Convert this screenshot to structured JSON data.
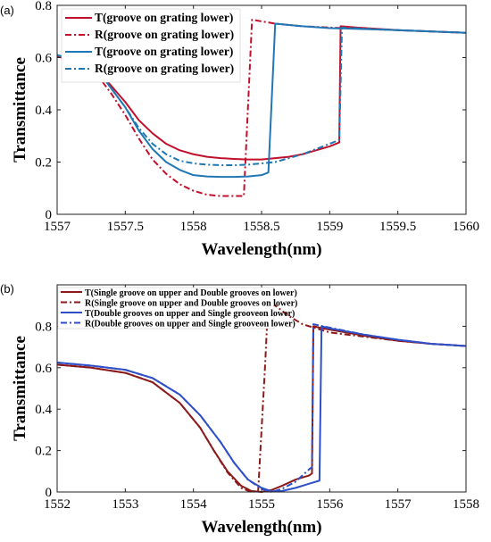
{
  "chart_data": [
    {
      "id": "a",
      "panel_label": "(a)",
      "type": "line",
      "xlabel": "Wavelength(nm)",
      "ylabel": "Transmittance",
      "xlim": [
        1557,
        1560
      ],
      "ylim": [
        0,
        0.8
      ],
      "xticks": [
        "1557",
        "1557.5",
        "1558",
        "1558.5",
        "1559",
        "1559.5",
        "1560"
      ],
      "yticks": [
        "0",
        "0.2",
        "0.4",
        "0.6",
        "0.8"
      ],
      "legend_position": "top-left",
      "series": [
        {
          "name": "T(groove on grating lower)",
          "color": "#c0102c",
          "dash": "solid",
          "points": [
            [
              1557,
              0.605
            ],
            [
              1557.1,
              0.595
            ],
            [
              1557.2,
              0.58
            ],
            [
              1557.3,
              0.55
            ],
            [
              1557.4,
              0.49
            ],
            [
              1557.5,
              0.43
            ],
            [
              1557.6,
              0.36
            ],
            [
              1557.7,
              0.31
            ],
            [
              1557.8,
              0.27
            ],
            [
              1557.9,
              0.245
            ],
            [
              1558,
              0.23
            ],
            [
              1558.1,
              0.22
            ],
            [
              1558.2,
              0.215
            ],
            [
              1558.3,
              0.212
            ],
            [
              1558.4,
              0.21
            ],
            [
              1558.5,
              0.21
            ],
            [
              1558.6,
              0.215
            ],
            [
              1558.7,
              0.22
            ],
            [
              1558.8,
              0.23
            ],
            [
              1558.9,
              0.245
            ],
            [
              1559,
              0.26
            ],
            [
              1559.07,
              0.275
            ],
            [
              1559.08,
              0.72
            ],
            [
              1559.2,
              0.715
            ],
            [
              1559.5,
              0.705
            ],
            [
              1560,
              0.695
            ]
          ]
        },
        {
          "name": "R(groove on grating lower)",
          "color": "#c0102c",
          "dash": "dashdot",
          "points": [
            [
              1557,
              0.605
            ],
            [
              1557.1,
              0.59
            ],
            [
              1557.2,
              0.57
            ],
            [
              1557.3,
              0.53
            ],
            [
              1557.4,
              0.46
            ],
            [
              1557.5,
              0.38
            ],
            [
              1557.6,
              0.29
            ],
            [
              1557.7,
              0.21
            ],
            [
              1557.8,
              0.155
            ],
            [
              1557.9,
              0.115
            ],
            [
              1558,
              0.09
            ],
            [
              1558.1,
              0.075
            ],
            [
              1558.2,
              0.07
            ],
            [
              1558.3,
              0.07
            ],
            [
              1558.37,
              0.07
            ],
            [
              1558.43,
              0.745
            ],
            [
              1558.6,
              0.73
            ],
            [
              1558.8,
              0.72
            ],
            [
              1559,
              0.715
            ],
            [
              1559.5,
              0.705
            ],
            [
              1560,
              0.695
            ]
          ]
        },
        {
          "name": "T(groove on grating lower)",
          "color": "#1f77b4",
          "dash": "solid",
          "points": [
            [
              1557,
              0.61
            ],
            [
              1557.1,
              0.595
            ],
            [
              1557.2,
              0.58
            ],
            [
              1557.3,
              0.55
            ],
            [
              1557.4,
              0.48
            ],
            [
              1557.5,
              0.41
            ],
            [
              1557.6,
              0.32
            ],
            [
              1557.7,
              0.25
            ],
            [
              1557.8,
              0.2
            ],
            [
              1557.9,
              0.17
            ],
            [
              1558,
              0.15
            ],
            [
              1558.1,
              0.145
            ],
            [
              1558.2,
              0.143
            ],
            [
              1558.3,
              0.143
            ],
            [
              1558.4,
              0.145
            ],
            [
              1558.5,
              0.15
            ],
            [
              1558.55,
              0.16
            ],
            [
              1558.6,
              0.73
            ],
            [
              1558.8,
              0.72
            ],
            [
              1559,
              0.713
            ],
            [
              1559.5,
              0.705
            ],
            [
              1560,
              0.695
            ]
          ]
        },
        {
          "name": "R(groove on grating lower)",
          "color": "#1f77b4",
          "dash": "dashdot",
          "points": [
            [
              1557,
              0.61
            ],
            [
              1557.1,
              0.595
            ],
            [
              1557.2,
              0.58
            ],
            [
              1557.3,
              0.55
            ],
            [
              1557.4,
              0.48
            ],
            [
              1557.5,
              0.41
            ],
            [
              1557.6,
              0.33
            ],
            [
              1557.7,
              0.27
            ],
            [
              1557.8,
              0.23
            ],
            [
              1557.9,
              0.205
            ],
            [
              1558,
              0.195
            ],
            [
              1558.1,
              0.19
            ],
            [
              1558.2,
              0.188
            ],
            [
              1558.3,
              0.188
            ],
            [
              1558.4,
              0.19
            ],
            [
              1558.5,
              0.195
            ],
            [
              1558.6,
              0.2
            ],
            [
              1558.7,
              0.215
            ],
            [
              1558.8,
              0.23
            ],
            [
              1558.9,
              0.25
            ],
            [
              1559,
              0.27
            ],
            [
              1559.07,
              0.285
            ],
            [
              1559.09,
              0.715
            ],
            [
              1559.3,
              0.71
            ],
            [
              1559.5,
              0.705
            ],
            [
              1560,
              0.695
            ]
          ]
        }
      ]
    },
    {
      "id": "b",
      "panel_label": "(b)",
      "type": "line",
      "xlabel": "Wavelength(nm)",
      "ylabel": "Transmittance",
      "xlim": [
        1552,
        1558
      ],
      "ylim": [
        0,
        1.0
      ],
      "xticks": [
        "1552",
        "1553",
        "1554",
        "1555",
        "1556",
        "1557",
        "1558"
      ],
      "yticks": [
        "0",
        "0.2",
        "0.4",
        "0.6",
        "0.8"
      ],
      "legend_position": "top-left",
      "series": [
        {
          "name": "T(Single groove on upper and Double grooves on lower)",
          "color": "#8b1a1a",
          "dash": "solid",
          "points": [
            [
              1552,
              0.615
            ],
            [
              1552.5,
              0.6
            ],
            [
              1553,
              0.575
            ],
            [
              1553.4,
              0.53
            ],
            [
              1553.8,
              0.43
            ],
            [
              1554.1,
              0.31
            ],
            [
              1554.3,
              0.2
            ],
            [
              1554.5,
              0.1
            ],
            [
              1554.7,
              0.03
            ],
            [
              1554.85,
              0.005
            ],
            [
              1555,
              0.0
            ],
            [
              1555.15,
              0.01
            ],
            [
              1555.3,
              0.03
            ],
            [
              1555.5,
              0.06
            ],
            [
              1555.7,
              0.08
            ],
            [
              1555.74,
              0.09
            ],
            [
              1555.76,
              0.8
            ],
            [
              1555.9,
              0.79
            ],
            [
              1556.5,
              0.755
            ],
            [
              1557,
              0.73
            ],
            [
              1557.5,
              0.715
            ],
            [
              1558,
              0.705
            ]
          ]
        },
        {
          "name": "R(Single groove on upper and Double grooves on lower)",
          "color": "#8b1a1a",
          "dash": "dashdot",
          "points": [
            [
              1552,
              0.615
            ],
            [
              1552.5,
              0.6
            ],
            [
              1553,
              0.575
            ],
            [
              1553.4,
              0.53
            ],
            [
              1553.8,
              0.43
            ],
            [
              1554.1,
              0.31
            ],
            [
              1554.3,
              0.2
            ],
            [
              1554.5,
              0.095
            ],
            [
              1554.7,
              0.02
            ],
            [
              1554.85,
              0.0
            ],
            [
              1554.95,
              0.005
            ],
            [
              1555.05,
              0.6
            ],
            [
              1555.1,
              0.94
            ],
            [
              1555.2,
              0.9
            ],
            [
              1555.4,
              0.85
            ],
            [
              1555.6,
              0.81
            ],
            [
              1556,
              0.77
            ],
            [
              1556.5,
              0.75
            ],
            [
              1557,
              0.73
            ],
            [
              1557.5,
              0.715
            ],
            [
              1558,
              0.705
            ]
          ]
        },
        {
          "name": "T(Double grooves on upper and  Single grooveon lower)",
          "color": "#2f4fc8",
          "dash": "solid",
          "points": [
            [
              1552,
              0.625
            ],
            [
              1552.5,
              0.61
            ],
            [
              1553,
              0.59
            ],
            [
              1553.4,
              0.55
            ],
            [
              1553.8,
              0.47
            ],
            [
              1554.1,
              0.37
            ],
            [
              1554.4,
              0.24
            ],
            [
              1554.6,
              0.14
            ],
            [
              1554.8,
              0.06
            ],
            [
              1555,
              0.02
            ],
            [
              1555.15,
              0.003
            ],
            [
              1555.3,
              0.005
            ],
            [
              1555.5,
              0.02
            ],
            [
              1555.7,
              0.04
            ],
            [
              1555.85,
              0.055
            ],
            [
              1555.88,
              0.8
            ],
            [
              1556,
              0.79
            ],
            [
              1556.5,
              0.76
            ],
            [
              1557,
              0.735
            ],
            [
              1557.5,
              0.715
            ],
            [
              1558,
              0.705
            ]
          ]
        },
        {
          "name": "R(Double grooves on upper and  Single grooveon lower)",
          "color": "#2f4fc8",
          "dash": "dashdot",
          "points": [
            [
              1552,
              0.625
            ],
            [
              1552.5,
              0.61
            ],
            [
              1553,
              0.59
            ],
            [
              1553.4,
              0.55
            ],
            [
              1553.8,
              0.47
            ],
            [
              1554.1,
              0.37
            ],
            [
              1554.4,
              0.24
            ],
            [
              1554.6,
              0.14
            ],
            [
              1554.8,
              0.06
            ],
            [
              1555,
              0.015
            ],
            [
              1555.15,
              0.0
            ],
            [
              1555.3,
              0.015
            ],
            [
              1555.5,
              0.05
            ],
            [
              1555.7,
              0.11
            ],
            [
              1555.74,
              0.12
            ],
            [
              1555.76,
              0.81
            ],
            [
              1555.9,
              0.8
            ],
            [
              1556.5,
              0.76
            ],
            [
              1557,
              0.735
            ],
            [
              1557.5,
              0.715
            ],
            [
              1558,
              0.705
            ]
          ]
        }
      ]
    }
  ]
}
